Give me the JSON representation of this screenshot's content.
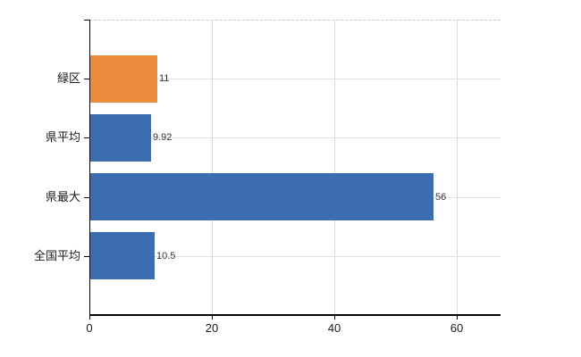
{
  "chart_data": {
    "type": "bar",
    "orientation": "horizontal",
    "title": "",
    "xlabel": "",
    "ylabel": "",
    "categories": [
      "緑区",
      "県平均",
      "県最大",
      "全国平均"
    ],
    "values": [
      11,
      9.92,
      56,
      10.5
    ],
    "value_labels": [
      "11",
      "9.92",
      "56",
      "10.5"
    ],
    "bar_colors": [
      "#EC8B3B",
      "#3C6DAE",
      "#3C6DAE",
      "#3C6DAE"
    ],
    "xticks": [
      0,
      20,
      40,
      60
    ],
    "xtick_labels": [
      "0",
      "20",
      "40",
      "60"
    ],
    "xlim": [
      0,
      67.15
    ],
    "grid": true,
    "legend": "none",
    "colors": {
      "orange_bar": "#EC8B3B",
      "blue_bar": "#3C6DAE",
      "h_gridline": "#dde2da",
      "v_gridline": "#d9d9d9",
      "top_border_dashed": "#c6c6cc",
      "axis": "#000000",
      "tick_label_text": "#1a1a1a",
      "value_label_text": "#333333",
      "background": "#ffffff"
    }
  }
}
